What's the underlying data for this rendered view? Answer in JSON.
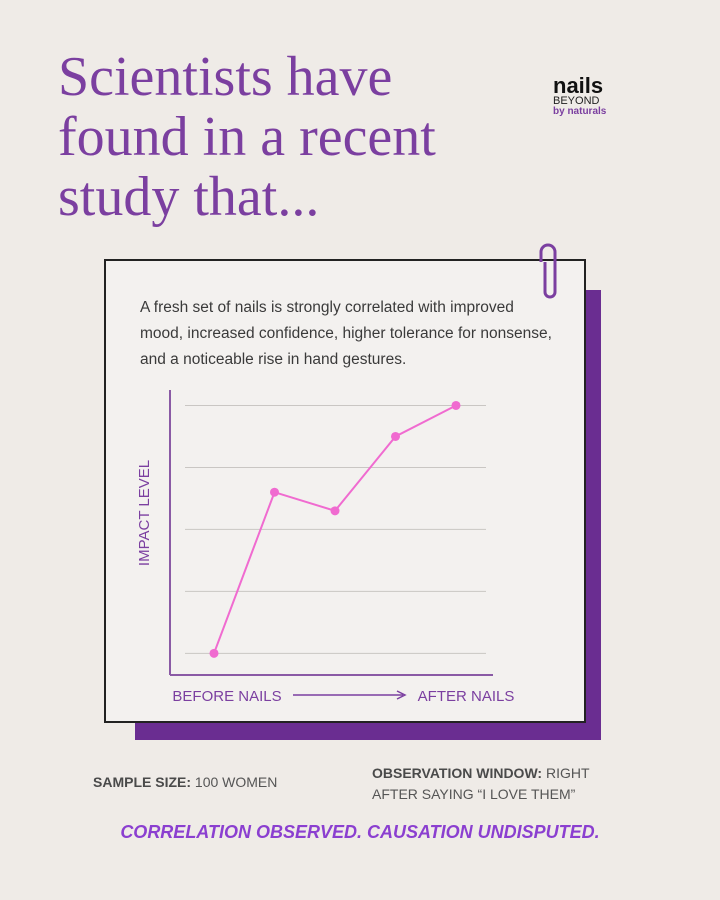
{
  "header": {
    "title_lines": [
      "Scientists have",
      "found in a recent",
      "study that..."
    ],
    "logo": {
      "brand": "nails",
      "sub": "BEYOND",
      "by": "by naturals"
    }
  },
  "description": "A fresh set of nails is strongly correlated with improved mood, increased confidence, higher tolerance for nonsense, and a noticeable rise in hand gestures.",
  "chart_data": {
    "type": "line",
    "ylabel": "IMPACT LEVEL",
    "x_start_label": "BEFORE NAILS",
    "x_end_label": "AFTER NAILS",
    "categories": [
      null,
      null,
      null,
      null,
      null
    ],
    "values": [
      0,
      2.6,
      2.3,
      3.5,
      4
    ],
    "color": "#f06bd0",
    "ylim": [
      -0.35,
      4.25
    ],
    "yticks": [
      0,
      1,
      2,
      3,
      4
    ],
    "grid": true
  },
  "footer": {
    "sample_label": "SAMPLE SIZE:",
    "sample_value": "100 WOMEN",
    "window_label": "OBSERVATION WINDOW:",
    "window_value": "RIGHT AFTER SAYING “I LOVE THEM”",
    "tagline": "CORRELATION OBSERVED. CAUSATION UNDISPUTED."
  }
}
